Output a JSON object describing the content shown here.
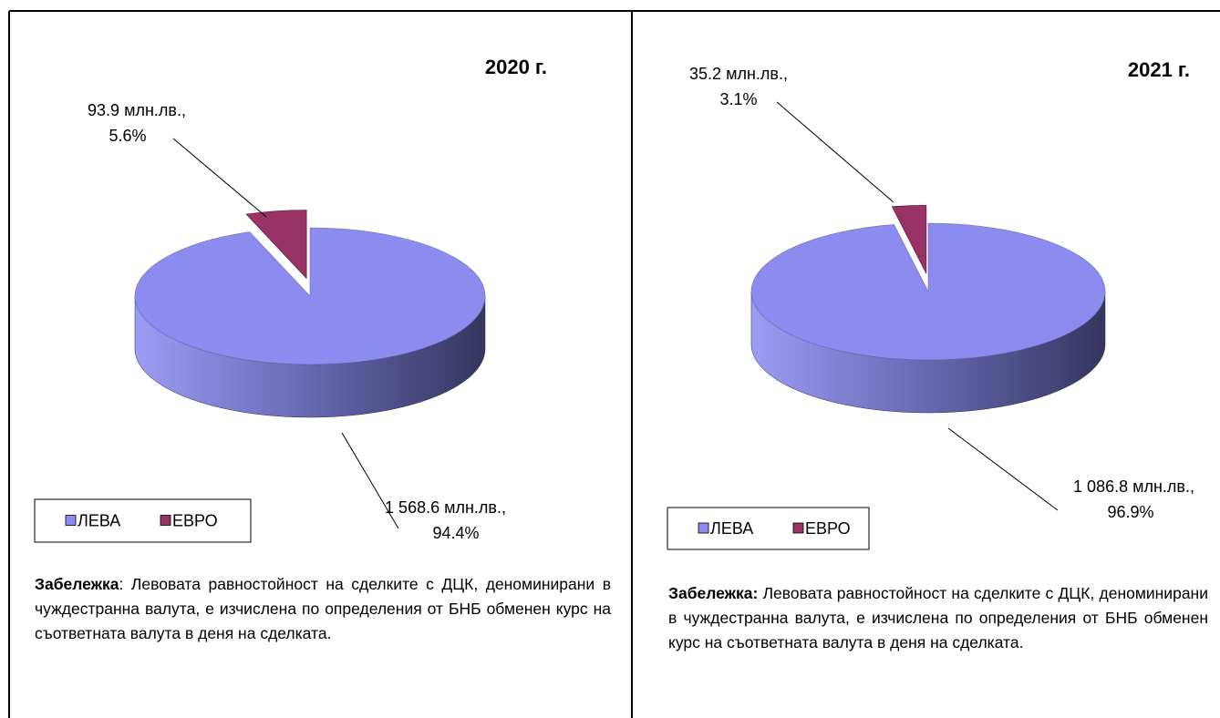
{
  "chart_data": [
    {
      "type": "pie",
      "title": "2020 г.",
      "categories": [
        "ЛЕВА",
        "ЕВРО"
      ],
      "colors": [
        "#8c8cf0",
        "#993366"
      ],
      "values": [
        94.4,
        5.6
      ],
      "value_labels": [
        "94.4%",
        "5.6%"
      ],
      "amount_labels": [
        "1 568.6 млн.лв.,",
        "93.9 млн.лв.,"
      ],
      "note_title": "Забележка",
      "note_colon": ":",
      "note": "Левовата равностойност на сделките с ДЦК, деноминирани в чуждестранна валута, е изчислена по определения от БНБ обменен курс на съответната валута в деня на сделката."
    },
    {
      "type": "pie",
      "title": "2021 г.",
      "categories": [
        "ЛЕВА",
        "ЕВРО"
      ],
      "colors": [
        "#8c8cf0",
        "#993366"
      ],
      "values": [
        96.9,
        3.1
      ],
      "value_labels": [
        "96.9%",
        "3.1%"
      ],
      "amount_labels": [
        "1 086.8 млн.лв.,",
        "35.2 млн.лв.,"
      ],
      "note_title": "Забележка:",
      "note_colon": "",
      "note": "Левовата равностойност на сделките с ДЦК, деноминирани в чуждестранна валута, е изчислена по определения от БНБ обменен курс на съответната валута в деня на сделката."
    }
  ]
}
